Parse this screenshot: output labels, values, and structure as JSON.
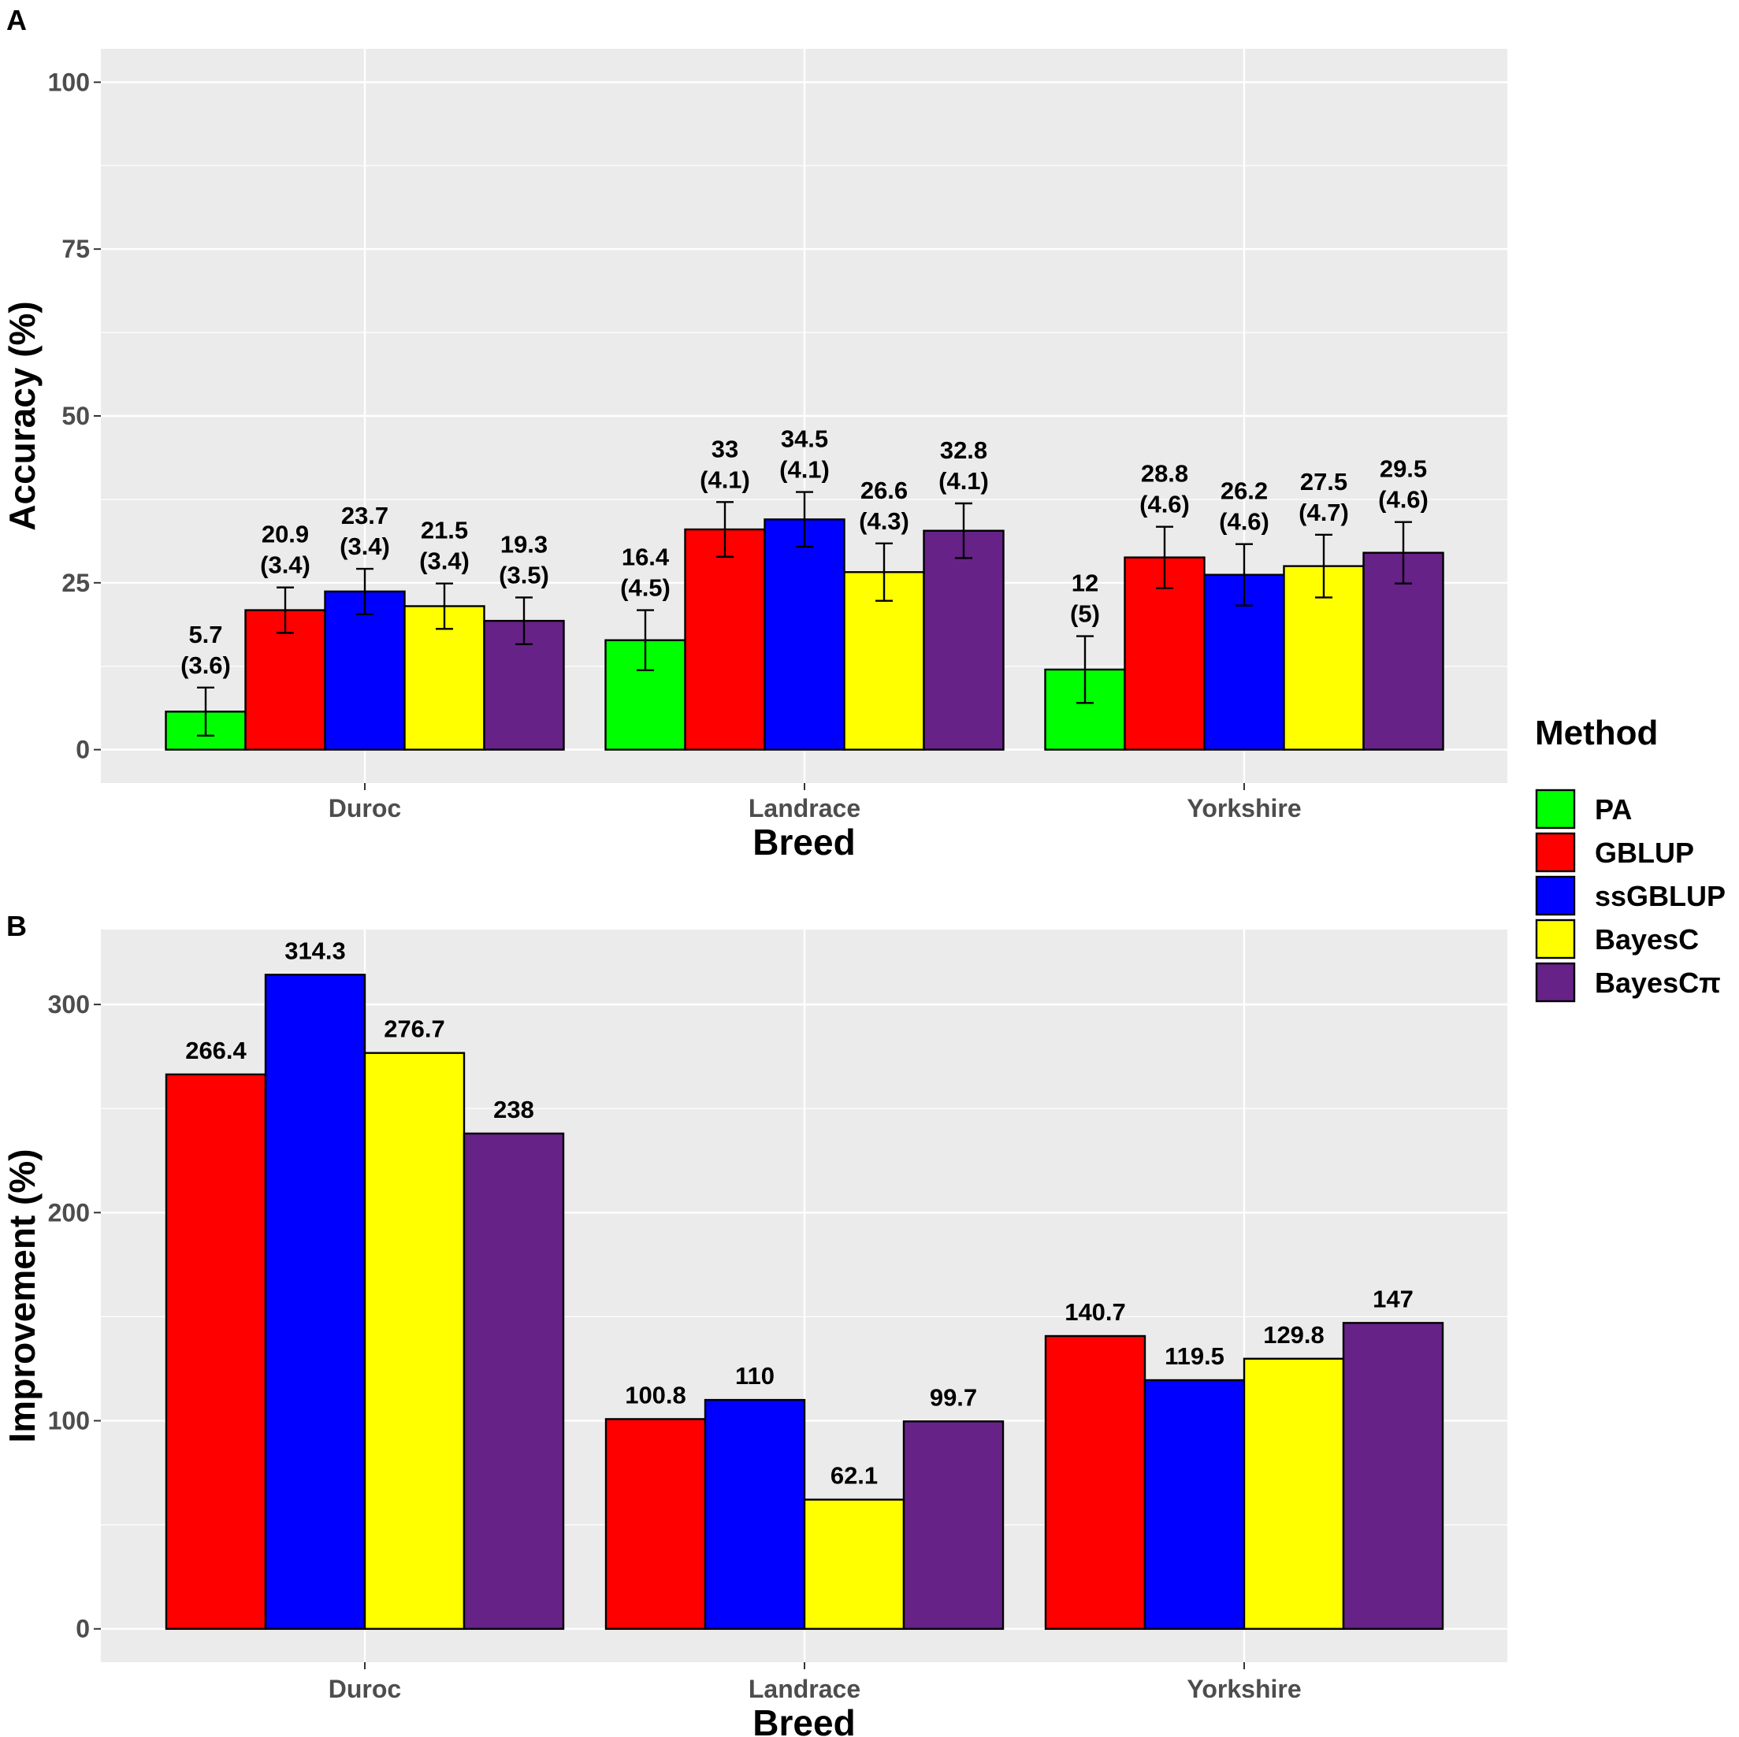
{
  "chart_data": [
    {
      "panel": "A",
      "type": "bar",
      "title": "",
      "xlabel": "Breed",
      "ylabel": "Accuracy (%)",
      "categories": [
        "Duroc",
        "Landrace",
        "Yorkshire"
      ],
      "ylim": [
        -5,
        105
      ],
      "yticks": [
        0,
        25,
        50,
        75,
        100
      ],
      "grid": true,
      "series": [
        {
          "name": "PA",
          "color": "#00ff00",
          "values": [
            5.7,
            16.4,
            12
          ],
          "errors": [
            3.6,
            4.5,
            5
          ],
          "labels": [
            [
              "5.7",
              "(3.6)"
            ],
            [
              "16.4",
              "(4.5)"
            ],
            [
              "12",
              "(5)"
            ]
          ]
        },
        {
          "name": "GBLUP",
          "color": "#ff0000",
          "values": [
            20.9,
            33,
            28.8
          ],
          "errors": [
            3.4,
            4.1,
            4.6
          ],
          "labels": [
            [
              "20.9",
              "(3.4)"
            ],
            [
              "33",
              "(4.1)"
            ],
            [
              "28.8",
              "(4.6)"
            ]
          ]
        },
        {
          "name": "ssGBLUP",
          "color": "#0000ff",
          "values": [
            23.7,
            34.5,
            26.2
          ],
          "errors": [
            3.4,
            4.1,
            4.6
          ],
          "labels": [
            [
              "23.7",
              "(3.4)"
            ],
            [
              "34.5",
              "(4.1)"
            ],
            [
              "26.2",
              "(4.6)"
            ]
          ]
        },
        {
          "name": "BayesC",
          "color": "#ffff00",
          "values": [
            21.5,
            26.6,
            27.5
          ],
          "errors": [
            3.4,
            4.3,
            4.7
          ],
          "labels": [
            [
              "21.5",
              "(3.4)"
            ],
            [
              "26.6",
              "(4.3)"
            ],
            [
              "27.5",
              "(4.7)"
            ]
          ]
        },
        {
          "name": "BayesCπ",
          "color": "#662287",
          "values": [
            19.3,
            32.8,
            29.5
          ],
          "errors": [
            3.5,
            4.1,
            4.6
          ],
          "labels": [
            [
              "19.3",
              "(3.5)"
            ],
            [
              "32.8",
              "(4.1)"
            ],
            [
              "29.5",
              "(4.6)"
            ]
          ]
        }
      ]
    },
    {
      "panel": "B",
      "type": "bar",
      "title": "",
      "xlabel": "Breed",
      "ylabel": "Improvement (%)",
      "categories": [
        "Duroc",
        "Landrace",
        "Yorkshire"
      ],
      "ylim": [
        -16,
        336
      ],
      "yticks": [
        0,
        100,
        200,
        300
      ],
      "grid": true,
      "series": [
        {
          "name": "GBLUP",
          "color": "#ff0000",
          "values": [
            266.4,
            100.8,
            140.7
          ],
          "labels": [
            "266.4",
            "100.8",
            "140.7"
          ]
        },
        {
          "name": "ssGBLUP",
          "color": "#0000ff",
          "values": [
            314.3,
            110,
            119.5
          ],
          "labels": [
            "314.3",
            "110",
            "119.5"
          ]
        },
        {
          "name": "BayesC",
          "color": "#ffff00",
          "values": [
            276.7,
            62.1,
            129.8
          ],
          "labels": [
            "276.7",
            "62.1",
            "129.8"
          ]
        },
        {
          "name": "BayesCπ",
          "color": "#662287",
          "values": [
            238,
            99.7,
            147
          ],
          "labels": [
            "238",
            "99.7",
            "147"
          ]
        }
      ]
    }
  ],
  "legend": {
    "title": "Method",
    "position": "right",
    "items": [
      {
        "label": "PA",
        "color": "#00ff00"
      },
      {
        "label": "GBLUP",
        "color": "#ff0000"
      },
      {
        "label": "ssGBLUP",
        "color": "#0000ff"
      },
      {
        "label": "BayesC",
        "color": "#ffff00"
      },
      {
        "label": "BayesCπ",
        "color": "#662287"
      }
    ]
  },
  "style": {
    "panel_bg": "#ebebeb",
    "grid_major": "#ffffff",
    "bar_outline": "#000000"
  }
}
